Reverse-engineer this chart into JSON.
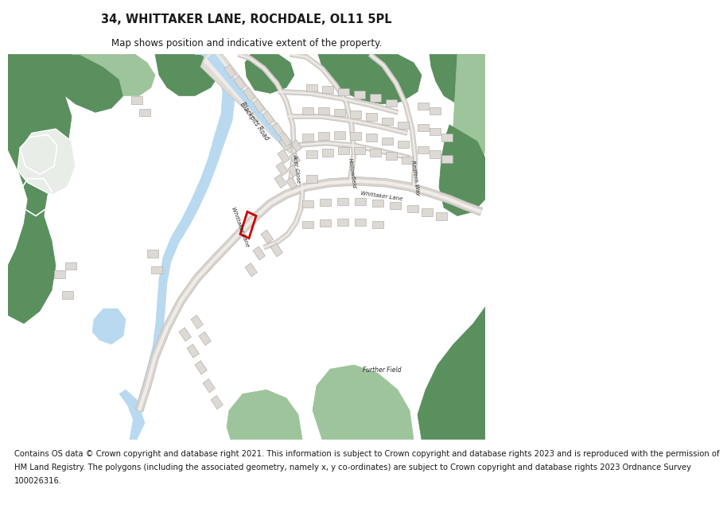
{
  "title": "34, WHITTAKER LANE, ROCHDALE, OL11 5PL",
  "subtitle": "Map shows position and indicative extent of the property.",
  "footer_lines": [
    "Contains OS data © Crown copyright and database right 2021. This information is subject to Crown copyright and database rights 2023 and is reproduced with the permission of",
    "HM Land Registry. The polygons (including the associated geometry, namely x, y co-ordinates) are subject to Crown copyright and database rights 2023 Ordnance Survey",
    "100026316."
  ],
  "bg_color": "#ffffff",
  "map_bg": "#f5f3f0",
  "green_dark": "#5a8f5e",
  "green_light": "#9dc49a",
  "blue_water": "#b8d9f0",
  "building_color": "#ddd9d5",
  "plot_outline": "#cc0000",
  "text_color": "#1a1a1a",
  "title_fontsize": 10.5,
  "subtitle_fontsize": 8.5,
  "footer_fontsize": 7.2
}
